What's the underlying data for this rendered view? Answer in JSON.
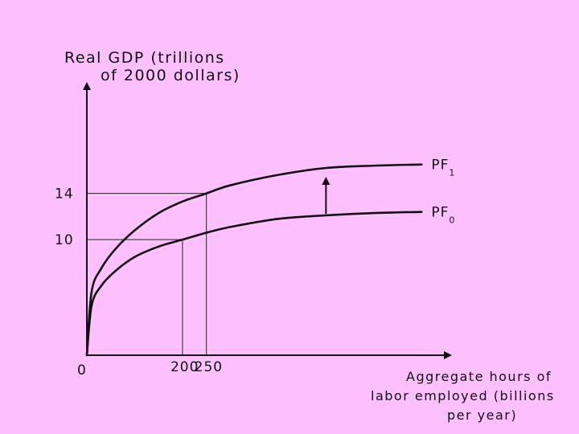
{
  "chart_data": {
    "type": "line",
    "ylabel": [
      "Real GDP (trillions",
      "of 2000 dollars)"
    ],
    "xlabel": [
      "Aggregate hours of",
      "labor employed (billions",
      "per year)"
    ],
    "origin_label": "0",
    "x_ticks": [
      {
        "value": 200,
        "label": "200"
      },
      {
        "value": 250,
        "label": "250"
      }
    ],
    "y_ticks": [
      {
        "value": 10,
        "label": "10"
      },
      {
        "value": 14,
        "label": "14"
      }
    ],
    "xlim": [
      0,
      760
    ],
    "ylim": [
      0,
      23.5
    ],
    "series": [
      {
        "name": "PF",
        "subscript": "0",
        "label": "PF₀",
        "points": [
          [
            0,
            0
          ],
          [
            10,
            4.3
          ],
          [
            30,
            6.0
          ],
          [
            60,
            7.3
          ],
          [
            100,
            8.5
          ],
          [
            150,
            9.4
          ],
          [
            200,
            10.0
          ],
          [
            250,
            10.6
          ],
          [
            300,
            11.1
          ],
          [
            400,
            11.8
          ],
          [
            500,
            12.1
          ],
          [
            600,
            12.3
          ],
          [
            700,
            12.4
          ]
        ]
      },
      {
        "name": "PF",
        "subscript": "1",
        "label": "PF₁",
        "points": [
          [
            0,
            0
          ],
          [
            10,
            5.5
          ],
          [
            30,
            7.5
          ],
          [
            60,
            9.2
          ],
          [
            100,
            10.8
          ],
          [
            150,
            12.3
          ],
          [
            200,
            13.3
          ],
          [
            250,
            14.0
          ],
          [
            300,
            14.7
          ],
          [
            400,
            15.6
          ],
          [
            500,
            16.2
          ],
          [
            600,
            16.4
          ],
          [
            700,
            16.5
          ]
        ]
      }
    ],
    "reference_points": [
      {
        "x": 200,
        "y": 10
      },
      {
        "x": 250,
        "y": 14
      }
    ],
    "annotation": {
      "type": "arrow",
      "x": 500,
      "from_y": 12.1,
      "to_y": 15.3,
      "meaning": "shift up"
    },
    "grid": false,
    "legend": "none (curve labels at right end)"
  }
}
